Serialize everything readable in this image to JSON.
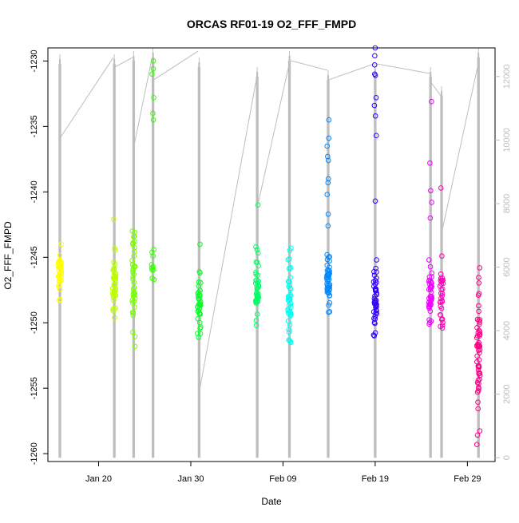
{
  "chart_data": {
    "type": "scatter",
    "title": "ORCAS RF01-19 O2_FFF_FMPD",
    "xlabel": "Date",
    "ylabel": "O2_FFF_FMPD",
    "x_ticks": [
      {
        "label": "Jan 20",
        "day": 20
      },
      {
        "label": "Jan 30",
        "day": 30
      },
      {
        "label": "Feb 09",
        "day": 40
      },
      {
        "label": "Feb 19",
        "day": 50
      },
      {
        "label": "Feb 29",
        "day": 60
      }
    ],
    "y_ticks": [
      -1260,
      -1255,
      -1250,
      -1245,
      -1240,
      -1235,
      -1230
    ],
    "y2_ticks": [
      0,
      2000,
      4000,
      6000,
      8000,
      10000,
      12000
    ],
    "xlim_day": [
      14.5,
      63.0
    ],
    "ylim": [
      -1260.6,
      -1229.0
    ],
    "y2lim": [
      -120,
      12900
    ],
    "axis_color": "#000000",
    "altitude_color": "#bdbdbd",
    "flights": [
      {
        "day": 15.8,
        "color": "#ffff00",
        "ymin": -1248.3,
        "ymax": -1244.0,
        "n": 42,
        "extra": []
      },
      {
        "day": 21.7,
        "color": "#bbff00",
        "ymin": -1249.6,
        "ymax": -1244.3,
        "n": 42,
        "extra": [
          -1242.1
        ]
      },
      {
        "day": 23.8,
        "color": "#77ff00",
        "ymin": -1251.8,
        "ymax": -1243.0,
        "n": 44,
        "extra": []
      },
      {
        "day": 25.9,
        "color": "#33ff00",
        "ymin": -1246.7,
        "ymax": -1244.4,
        "n": 10,
        "extra": [
          -1230.0,
          -1230.6,
          -1231.0,
          -1232.8,
          -1234.0,
          -1234.5
        ]
      },
      {
        "day": 30.9,
        "color": "#00ff22",
        "ymin": -1251.1,
        "ymax": -1246.1,
        "n": 36,
        "extra": [
          -1244.0
        ]
      },
      {
        "day": 37.2,
        "color": "#00ff66",
        "ymin": -1250.2,
        "ymax": -1244.2,
        "n": 40,
        "extra": [
          -1241.0
        ]
      },
      {
        "day": 40.7,
        "color": "#00ffee",
        "ymin": -1251.5,
        "ymax": -1244.3,
        "n": 48,
        "extra": []
      },
      {
        "day": 44.9,
        "color": "#0088ff",
        "ymin": -1249.2,
        "ymax": -1244.8,
        "n": 48,
        "extra": [
          -1234.5,
          -1235.9,
          -1236.5,
          -1237.3,
          -1237.6,
          -1239.0,
          -1239.3,
          -1240.2,
          -1241.7,
          -1242.6
        ]
      },
      {
        "day": 50.0,
        "color": "#3300ff",
        "ymin": -1251.0,
        "ymax": -1245.2,
        "n": 44,
        "extra": [
          -1229.0,
          -1229.6,
          -1230.3,
          -1231.0,
          -1231.1,
          -1232.8,
          -1233.4,
          -1234.2,
          -1235.7,
          -1240.7
        ]
      },
      {
        "day": 56.0,
        "color": "#ee00ff",
        "ymin": -1250.1,
        "ymax": -1245.2,
        "n": 42,
        "extra": [
          -1233.1,
          -1237.8,
          -1239.9,
          -1240.8,
          -1242.0
        ]
      },
      {
        "day": 57.2,
        "color": "#ff00bb",
        "ymin": -1250.4,
        "ymax": -1244.9,
        "n": 32,
        "extra": [
          -1239.7
        ]
      },
      {
        "day": 61.2,
        "color": "#ff0088",
        "ymin": -1259.3,
        "ymax": -1245.8,
        "n": 60,
        "extra": []
      }
    ],
    "altitude": [
      {
        "day": 15.8,
        "top": 12700,
        "low": 0
      },
      {
        "day": 21.7,
        "top": 12700,
        "low": 0
      },
      {
        "day": 23.8,
        "top": 12800,
        "low": 0
      },
      {
        "day": 25.9,
        "top": 12900,
        "low": 0
      },
      {
        "day": 30.9,
        "top": 12600,
        "low": 0
      },
      {
        "day": 37.2,
        "top": 12300,
        "low": 0
      },
      {
        "day": 40.7,
        "top": 12800,
        "low": 0
      },
      {
        "day": 44.9,
        "top": 12200,
        "low": 0
      },
      {
        "day": 50.0,
        "top": 12400,
        "low": 0
      },
      {
        "day": 56.0,
        "top": 12300,
        "low": 0
      },
      {
        "day": 57.2,
        "top": 11700,
        "low": 0
      },
      {
        "day": 61.2,
        "top": 12900,
        "low": 0
      }
    ],
    "altitude_links": [
      [
        15.9,
        10100,
        21.6,
        12600
      ],
      [
        21.8,
        12300,
        23.7,
        12600
      ],
      [
        23.9,
        9900,
        25.8,
        12600
      ],
      [
        26.0,
        11900,
        30.8,
        12800
      ],
      [
        31.0,
        2200,
        37.1,
        11900
      ],
      [
        37.3,
        8000,
        40.6,
        12300
      ],
      [
        40.8,
        12500,
        44.8,
        12200
      ],
      [
        45.0,
        11900,
        49.9,
        12400
      ],
      [
        50.1,
        12400,
        55.9,
        12100
      ],
      [
        56.1,
        11800,
        57.1,
        11400
      ],
      [
        57.3,
        7200,
        61.1,
        12300
      ]
    ]
  }
}
